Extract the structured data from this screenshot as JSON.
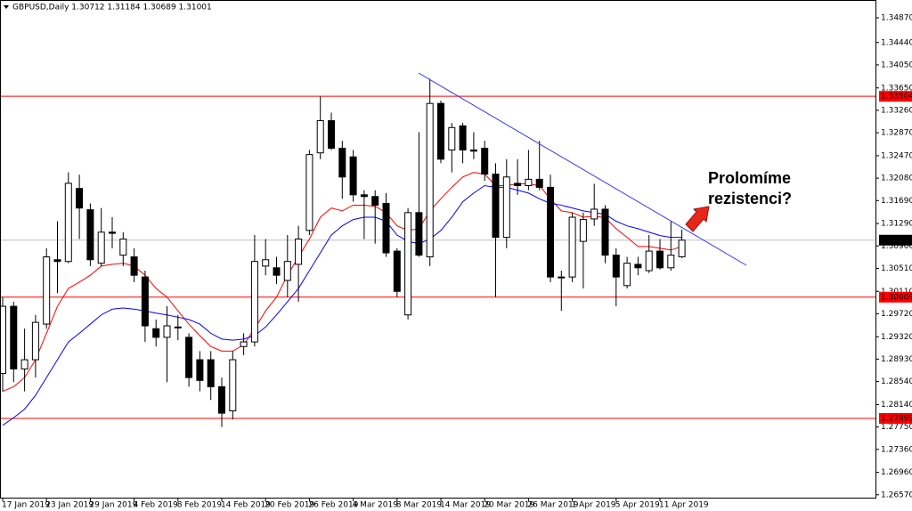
{
  "chart_data": {
    "type": "candlestick",
    "title": "GBPUSD,Daily  1.30712 1.31184 1.30689 1.31001",
    "categories": [
      "17 Jan 2019",
      null,
      null,
      null,
      "23 Jan 2019",
      null,
      null,
      null,
      "29 Jan 2019",
      null,
      null,
      null,
      "4 Feb 2019",
      null,
      null,
      null,
      "8 Feb 2019",
      null,
      null,
      null,
      "14 Feb 2019",
      null,
      null,
      null,
      "20 Feb 2019",
      null,
      null,
      null,
      "26 Feb 2019",
      null,
      null,
      null,
      "4 Mar 2019",
      null,
      null,
      null,
      "8 Mar 2019",
      null,
      null,
      null,
      "14 Mar 2019",
      null,
      null,
      null,
      "20 Mar 2019",
      null,
      null,
      null,
      "26 Mar 2019",
      null,
      null,
      null,
      "1 Apr 2019",
      null,
      null,
      null,
      "5 Apr 2019",
      null,
      null,
      null,
      "11 Apr 2019",
      null,
      null
    ],
    "open": [
      1.2868,
      1.2985,
      1.2876,
      1.2892,
      1.2954,
      1.3066,
      1.3063,
      1.319,
      1.3153,
      1.306,
      1.3114,
      1.3074,
      1.3071,
      1.3036,
      1.2946,
      1.2931,
      1.2949,
      1.2931,
      1.2892,
      1.2892,
      1.2845,
      1.2803,
      1.2915,
      1.2923,
      1.3055,
      1.3052,
      1.303,
      1.3058,
      1.3117,
      1.3252,
      1.3308,
      1.326,
      1.3245,
      1.3179,
      1.3176,
      1.3164,
      1.3081,
      1.297,
      1.3148,
      1.3071,
      1.3338,
      1.3257,
      1.3299,
      1.3257,
      1.326,
      1.3215,
      1.3105,
      1.3199,
      1.3195,
      1.3206,
      1.3192,
      1.3036,
      1.3036,
      1.3098,
      1.3137,
      1.3154,
      1.3074,
      1.3021,
      1.3058,
      1.3047,
      1.3081,
      1.3052,
      1.30712
    ],
    "high": [
      1.3001,
      1.2993,
      1.2946,
      1.297,
      1.3086,
      1.3133,
      1.3218,
      1.3214,
      1.3164,
      1.3156,
      1.314,
      1.3114,
      1.3086,
      1.3047,
      1.2962,
      1.2985,
      1.297,
      1.2938,
      1.2907,
      1.2907,
      1.2861,
      1.2907,
      1.2938,
      1.3109,
      1.3102,
      1.3071,
      1.3109,
      1.3125,
      1.3257,
      1.335,
      1.3322,
      1.3273,
      1.3257,
      1.3187,
      1.3187,
      1.3182,
      1.3086,
      1.3156,
      1.3288,
      1.3381,
      1.3343,
      1.3304,
      1.3304,
      1.3288,
      1.3273,
      1.3234,
      1.3241,
      1.3241,
      1.3257,
      1.3273,
      1.3214,
      1.3047,
      1.3148,
      1.3148,
      1.3198,
      1.3161,
      1.3086,
      1.3071,
      1.3071,
      1.3109,
      1.3102,
      1.3133,
      1.31184
    ],
    "low": [
      1.2837,
      1.2853,
      1.2837,
      1.2861,
      1.2946,
      1.3008,
      1.306,
      1.3102,
      1.3055,
      1.3055,
      1.3086,
      1.3055,
      1.3027,
      1.2923,
      1.2915,
      1.2853,
      1.2926,
      1.2845,
      1.2837,
      1.2822,
      1.2775,
      1.2788,
      1.29,
      1.2915,
      1.3039,
      1.3024,
      1.3001,
      1.2993,
      1.3109,
      1.3241,
      1.3257,
      1.3172,
      1.3167,
      1.3102,
      1.3094,
      1.3071,
      1.3001,
      1.2962,
      1.3071,
      1.3055,
      1.3234,
      1.3218,
      1.3234,
      1.3241,
      1.3203,
      1.3001,
      1.3086,
      1.3179,
      1.3187,
      1.3187,
      1.3027,
      1.2977,
      1.3027,
      1.3016,
      1.3125,
      1.306,
      1.2985,
      1.3016,
      1.3039,
      1.3043,
      1.3049,
      1.3047,
      1.30689
    ],
    "close": [
      1.2985,
      1.2876,
      1.2892,
      1.2957,
      1.3071,
      1.3063,
      1.3199,
      1.3156,
      1.3066,
      1.3114,
      1.3112,
      1.3102,
      1.3039,
      1.2951,
      1.2931,
      1.2951,
      1.2948,
      1.2861,
      1.2856,
      1.2845,
      1.2799,
      1.2892,
      1.2923,
      1.3063,
      1.3066,
      1.3039,
      1.3063,
      1.3102,
      1.3249,
      1.3308,
      1.326,
      1.321,
      1.3179,
      1.3176,
      1.3161,
      1.3078,
      1.3011,
      1.3148,
      1.3074,
      1.3338,
      1.3241,
      1.3296,
      1.3257,
      1.3255,
      1.3215,
      1.3105,
      1.321,
      1.3195,
      1.3206,
      1.3192,
      1.3036,
      1.3035,
      1.314,
      1.3136,
      1.3154,
      1.3074,
      1.3036,
      1.306,
      1.3052,
      1.3081,
      1.3052,
      1.3074,
      1.31001
    ],
    "up_color": "#ffffff",
    "down_color": "#000000",
    "moving_averages": [
      {
        "color": "#ff0000",
        "values": [
          1.2837,
          1.2845,
          1.2861,
          1.2892,
          1.2938,
          1.2985,
          1.3016,
          1.3027,
          1.3039,
          1.3055,
          1.3058,
          1.306,
          1.3055,
          1.3039,
          1.3016,
          1.3001,
          1.2977,
          1.2954,
          1.2934,
          1.2915,
          1.2907,
          1.2907,
          1.2918,
          1.2946,
          1.2977,
          1.3001,
          1.3039,
          1.3071,
          1.3102,
          1.314,
          1.3156,
          1.3151,
          1.3161,
          1.3161,
          1.3159,
          1.3148,
          1.3125,
          1.3117,
          1.312,
          1.3151,
          1.3172,
          1.3192,
          1.321,
          1.3218,
          1.3215,
          1.3195,
          1.3195,
          1.3198,
          1.3198,
          1.3195,
          1.3172,
          1.3151,
          1.3148,
          1.314,
          1.3142,
          1.3139,
          1.312,
          1.3105,
          1.3089,
          1.3089,
          1.3086,
          1.3083,
          1.3089
        ]
      },
      {
        "color": "#0000ff",
        "values": [
          1.2778,
          1.2791,
          1.2806,
          1.283,
          1.2861,
          1.2892,
          1.2923,
          1.2938,
          1.2954,
          1.297,
          1.298,
          1.2982,
          1.298,
          1.2977,
          1.2973,
          1.297,
          1.2966,
          1.2962,
          1.2954,
          1.2938,
          1.2928,
          1.2926,
          1.2928,
          1.2934,
          1.2949,
          1.297,
          1.2993,
          1.3016,
          1.3047,
          1.3078,
          1.3109,
          1.3125,
          1.3136,
          1.314,
          1.314,
          1.3133,
          1.3109,
          1.3098,
          1.3094,
          1.3102,
          1.3117,
          1.314,
          1.3167,
          1.3182,
          1.3195,
          1.3192,
          1.3192,
          1.3187,
          1.3182,
          1.3172,
          1.3164,
          1.3161,
          1.3156,
          1.3151,
          1.3148,
          1.3145,
          1.3133,
          1.3125,
          1.312,
          1.3114,
          1.3108,
          1.3105,
          1.3105
        ]
      }
    ],
    "levels": [
      {
        "value": 1.33504,
        "label": "1.33504",
        "color": "#ff0000",
        "box_color": "#ff0000"
      },
      {
        "value": 1.31001,
        "label": "1.31001",
        "color": "#c0c0c0",
        "box_color": "#000000"
      },
      {
        "value": 1.30009,
        "label": "1.30009",
        "color": "#ff0000",
        "box_color": "#ff0000"
      },
      {
        "value": 1.27899,
        "label": "1.27899",
        "color": "#ff0000",
        "box_color": "#ff0000"
      }
    ],
    "ylim": [
      1.2652,
      1.3518
    ],
    "yticks": [
      {
        "value": 1.3487,
        "label": "1.34870"
      },
      {
        "value": 1.3444,
        "label": "1.34440"
      },
      {
        "value": 1.3405,
        "label": "1.34050"
      },
      {
        "value": 1.3365,
        "label": "1.33650"
      },
      {
        "value": 1.3326,
        "label": "1.33260"
      },
      {
        "value": 1.3287,
        "label": "1.32870"
      },
      {
        "value": 1.3247,
        "label": "1.32470"
      },
      {
        "value": 1.3208,
        "label": "1.32080"
      },
      {
        "value": 1.3169,
        "label": "1.31690"
      },
      {
        "value": 1.3129,
        "label": "1.31290"
      },
      {
        "value": 1.309,
        "label": "1.30900"
      },
      {
        "value": 1.3051,
        "label": "1.30510"
      },
      {
        "value": 1.3011,
        "label": "1.30110"
      },
      {
        "value": 1.2972,
        "label": "1.29720"
      },
      {
        "value": 1.2932,
        "label": "1.29320"
      },
      {
        "value": 1.2893,
        "label": "1.28930"
      },
      {
        "value": 1.2854,
        "label": "1.28540"
      },
      {
        "value": 1.2814,
        "label": "1.28140"
      },
      {
        "value": 1.2775,
        "label": "1.27750"
      },
      {
        "value": 1.2736,
        "label": "1.27360"
      },
      {
        "value": 1.2696,
        "label": "1.26960"
      },
      {
        "value": 1.2657,
        "label": "1.26570"
      }
    ],
    "annotation": [
      "Prolomíme",
      "rezistenci?"
    ]
  }
}
